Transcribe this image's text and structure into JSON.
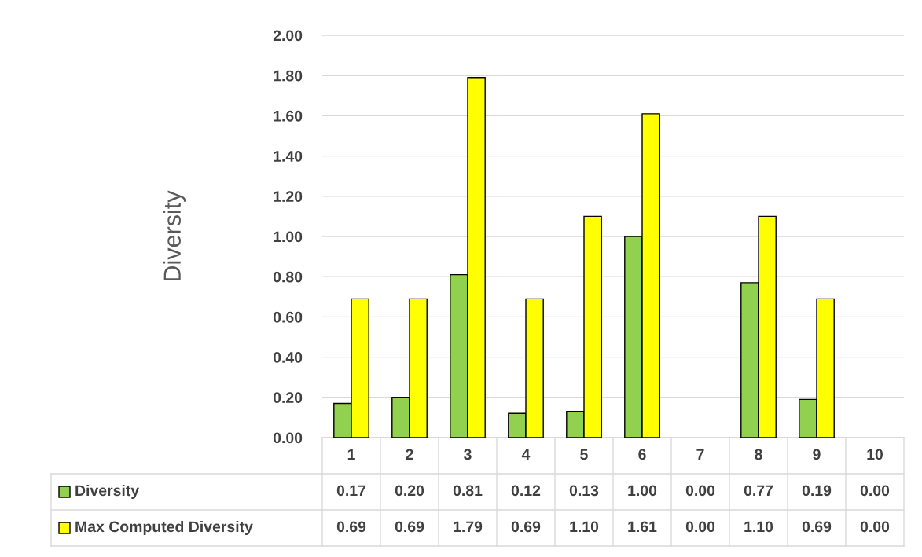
{
  "chart_data": {
    "type": "bar",
    "ylabel": "Diversity",
    "categories": [
      "1",
      "2",
      "3",
      "4",
      "5",
      "6",
      "7",
      "8",
      "9",
      "10"
    ],
    "series": [
      {
        "name": "Diversity",
        "color": "#92d050",
        "values": [
          0.17,
          0.2,
          0.81,
          0.12,
          0.13,
          1.0,
          0.0,
          0.77,
          0.19,
          0.0
        ],
        "value_labels": [
          "0.17",
          "0.20",
          "0.81",
          "0.12",
          "0.13",
          "1.00",
          "0.00",
          "0.77",
          "0.19",
          "0.00"
        ]
      },
      {
        "name": "Max Computed Diversity",
        "color": "#ffff00",
        "values": [
          0.69,
          0.69,
          1.79,
          0.69,
          1.1,
          1.61,
          0.0,
          1.1,
          0.69,
          0.0
        ],
        "value_labels": [
          "0.69",
          "0.69",
          "1.79",
          "0.69",
          "1.10",
          "1.61",
          "0.00",
          "1.10",
          "0.69",
          "0.00"
        ]
      }
    ],
    "ylim": [
      0,
      2
    ],
    "yticks": [
      {
        "value": 0,
        "label": "0.00"
      },
      {
        "value": 0.2,
        "label": "0.20"
      },
      {
        "value": 0.4,
        "label": "0.40"
      },
      {
        "value": 0.6,
        "label": "0.60"
      },
      {
        "value": 0.8,
        "label": "0.80"
      },
      {
        "value": 1.0,
        "label": "1.00"
      },
      {
        "value": 1.2,
        "label": "1.20"
      },
      {
        "value": 1.4,
        "label": "1.40"
      },
      {
        "value": 1.6,
        "label": "1.60"
      },
      {
        "value": 1.8,
        "label": "1.80"
      },
      {
        "value": 2.0,
        "label": "2.00"
      }
    ],
    "grid": "y",
    "legend": "bottom"
  }
}
